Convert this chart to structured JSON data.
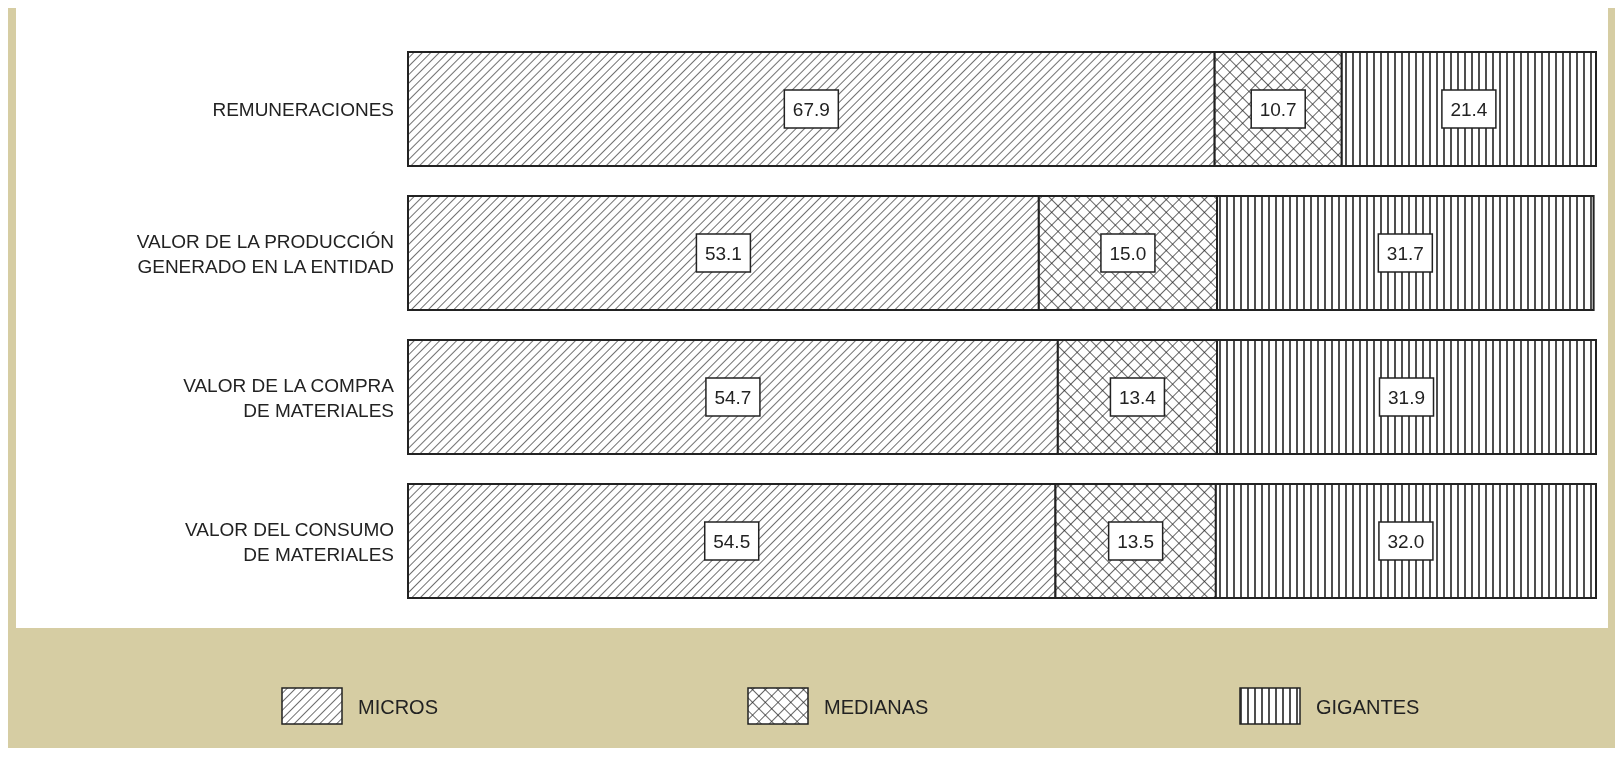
{
  "chart_data": {
    "type": "bar",
    "orientation": "horizontal",
    "stacked": true,
    "legend": "bottom",
    "categories": [
      "REMUNERACIONES",
      "VALOR DE LA PRODUCCIÓN GENERADO EN LA ENTIDAD",
      "VALOR DE LA COMPRA DE MATERIALES",
      "VALOR DEL CONSUMO DE MATERIALES"
    ],
    "series": [
      {
        "name": "MICROS",
        "color": "#222222",
        "values": [
          67.9,
          53.1,
          54.7,
          54.5
        ],
        "value_labels": [
          "67.9",
          "53.1",
          "54.7",
          "54.5"
        ]
      },
      {
        "name": "MEDIANAS",
        "color": "#222222",
        "values": [
          10.7,
          15.0,
          13.4,
          13.5
        ],
        "value_labels": [
          "10.7",
          "15.0",
          "13.4",
          "13.5"
        ]
      },
      {
        "name": "GIGANTES",
        "color": "#222222",
        "values": [
          21.4,
          31.7,
          31.9,
          32.0
        ],
        "value_labels": [
          "21.4",
          "31.7",
          "31.9",
          "32.0"
        ]
      }
    ]
  }
}
